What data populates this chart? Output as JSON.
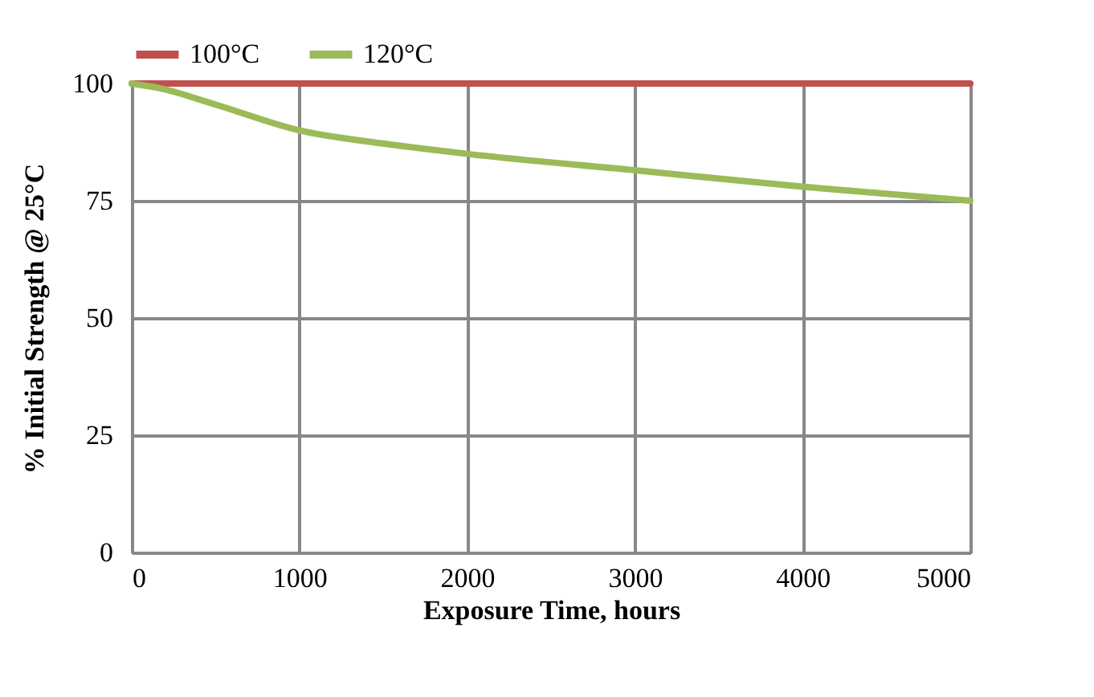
{
  "chart_data": {
    "type": "line",
    "xlabel": "Exposure Time, hours",
    "ylabel": "% Initial Strength @ 25°C",
    "xlim": [
      0,
      5000
    ],
    "xticks": [
      0,
      1000,
      2000,
      3000,
      4000,
      5000
    ],
    "ylim": [
      0,
      100
    ],
    "yticks": [
      0,
      25,
      50,
      75,
      100
    ],
    "grid": true,
    "legend": "top",
    "marker": "none",
    "line_style": "solid",
    "series": [
      {
        "name": "100°C",
        "color": "#c0504d",
        "x": [
          0,
          1000,
          2000,
          3000,
          4000,
          5000
        ],
        "values": [
          100,
          100,
          100,
          100,
          100,
          100
        ]
      },
      {
        "name": "120°C",
        "color": "#9bbb59",
        "x": [
          0,
          168,
          500,
          1000,
          1500,
          2000,
          3000,
          4000,
          5000
        ],
        "values": [
          100,
          99,
          95.5,
          90,
          87.2,
          85,
          81.5,
          78,
          75
        ]
      }
    ]
  }
}
